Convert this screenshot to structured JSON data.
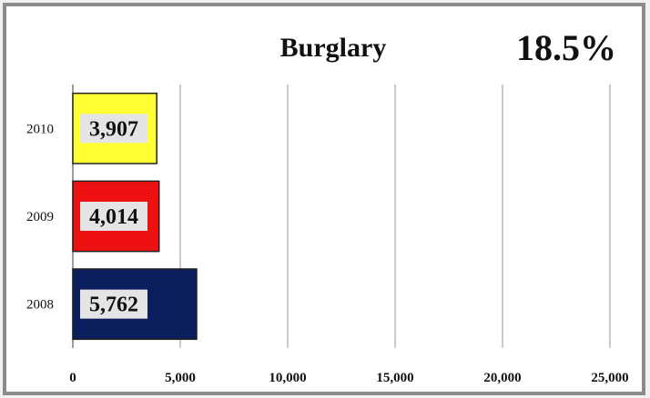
{
  "chart_data": {
    "type": "bar",
    "orientation": "horizontal",
    "title": "Burglary",
    "annotation": "18.5%",
    "categories": [
      "2010",
      "2009",
      "2008"
    ],
    "values": [
      3907,
      4014,
      5762
    ],
    "value_labels": [
      "3,907",
      "4,014",
      "5,762"
    ],
    "colors": [
      "#ffff33",
      "#ee1111",
      "#0b1e5e"
    ],
    "xlim": [
      0,
      25000
    ],
    "xticks": [
      0,
      5000,
      10000,
      15000,
      20000,
      25000
    ],
    "xtick_labels": [
      "0",
      "5,000",
      "10,000",
      "15,000",
      "20,000",
      "25,000"
    ],
    "xlabel": "",
    "ylabel": "",
    "grid": "vertical",
    "legend": "none"
  }
}
